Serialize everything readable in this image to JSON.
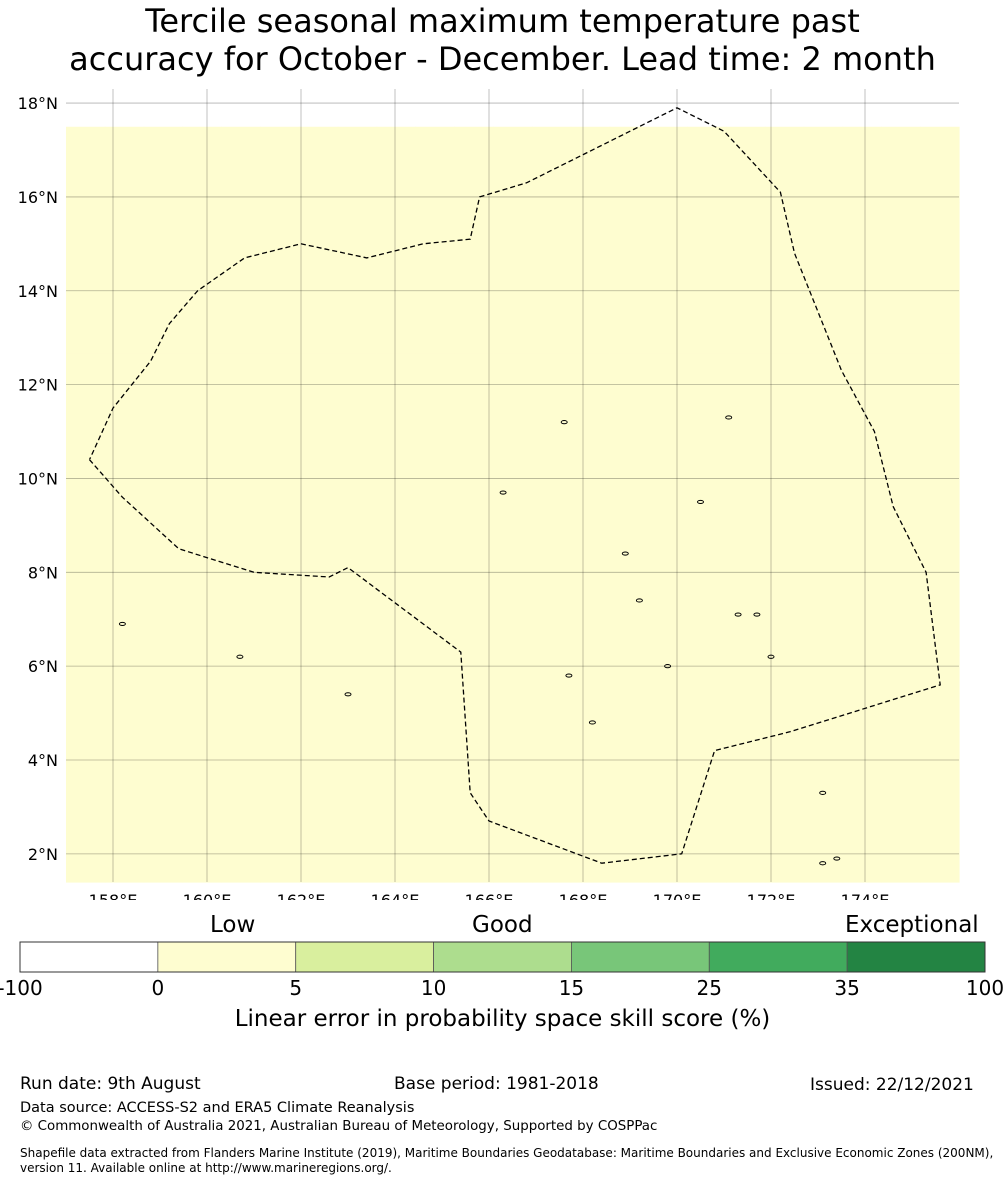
{
  "title": {
    "line1": "Tercile seasonal maximum temperature past",
    "line2": "accuracy for October - December. Lead time: 2 month"
  },
  "map": {
    "lon_range": [
      157,
      176
    ],
    "lat_range": [
      1.4,
      18.3
    ],
    "lon_ticks": [
      "158°E",
      "160°E",
      "162°E",
      "164°E",
      "166°E",
      "168°E",
      "170°E",
      "172°E",
      "174°E"
    ],
    "lat_ticks": [
      "18°N",
      "16°N",
      "14°N",
      "12°N",
      "10°N",
      "8°N",
      "6°N",
      "4°N",
      "2°N"
    ],
    "grid_resolution_deg": 0.833,
    "grid_note": "rows listed north to south, columns west to east; values are colorbar class indices 0-6",
    "skill_classes": [
      "00000000000000000000000",
      "11111111111111111111111",
      "11111111111111111111111",
      "11111111111111111111111",
      "11111111111111111111111",
      "11111111111111111111111",
      "11111111111111111111111",
      "11111111111111111111111",
      "11111111111111111111111",
      "11111111111111111111111",
      "11111111111111111111111",
      "11111111111111111111111",
      "11111111111111111111111",
      "11111111111111111111111",
      "11111111111111111111111",
      "11111111111111111111111",
      "11111111111111111111111",
      "11111111111111111111111",
      "11111111111111111111111",
      "11111111111111111111111",
      "11111111111111111111111"
    ],
    "eez_boundary": [
      [
        157.5,
        10.4
      ],
      [
        158.2,
        9.6
      ],
      [
        159.4,
        8.5
      ],
      [
        161.0,
        8.0
      ],
      [
        162.6,
        7.9
      ],
      [
        163.0,
        8.1
      ],
      [
        165.4,
        6.3
      ],
      [
        165.6,
        3.3
      ],
      [
        166.0,
        2.7
      ],
      [
        168.4,
        1.8
      ],
      [
        170.1,
        2.0
      ],
      [
        170.8,
        4.2
      ],
      [
        172.4,
        4.6
      ],
      [
        175.6,
        5.6
      ],
      [
        175.3,
        8.0
      ],
      [
        174.6,
        9.4
      ],
      [
        174.2,
        11.0
      ],
      [
        173.5,
        12.3
      ],
      [
        172.5,
        14.8
      ],
      [
        172.2,
        16.1
      ],
      [
        171.0,
        17.4
      ],
      [
        170.0,
        17.9
      ],
      [
        166.8,
        16.3
      ],
      [
        165.8,
        16.0
      ],
      [
        165.6,
        15.1
      ],
      [
        164.6,
        15.0
      ],
      [
        163.4,
        14.7
      ],
      [
        162.0,
        15.0
      ],
      [
        160.8,
        14.7
      ],
      [
        159.8,
        14.0
      ],
      [
        159.2,
        13.3
      ],
      [
        158.8,
        12.5
      ],
      [
        158.0,
        11.5
      ],
      [
        157.5,
        10.4
      ]
    ],
    "islands": [
      [
        158.2,
        6.9
      ],
      [
        160.7,
        6.2
      ],
      [
        163.0,
        5.4
      ],
      [
        166.3,
        9.7
      ],
      [
        167.6,
        11.2
      ],
      [
        168.9,
        8.4
      ],
      [
        169.2,
        7.4
      ],
      [
        170.5,
        9.5
      ],
      [
        171.3,
        7.1
      ],
      [
        171.7,
        7.1
      ],
      [
        172.0,
        6.2
      ],
      [
        173.1,
        3.3
      ],
      [
        173.1,
        1.8
      ],
      [
        173.4,
        1.9
      ],
      [
        171.1,
        11.3
      ],
      [
        168.2,
        4.8
      ],
      [
        167.7,
        5.8
      ],
      [
        169.8,
        6.0
      ]
    ]
  },
  "colorbar": {
    "category_words": [
      "Low",
      "Good",
      "Exceptional"
    ],
    "tick_labels": [
      "-100",
      "0",
      "5",
      "10",
      "15",
      "25",
      "35",
      "100"
    ],
    "colors": [
      "#ffffff",
      "#fefdd0",
      "#d9ef9e",
      "#addd8e",
      "#78c679",
      "#41ab5d",
      "#238443"
    ],
    "label": "Linear error in probability space skill score (%)"
  },
  "footer": {
    "run_date": "Run date: 9th August",
    "base_period": "Base period: 1981-2018",
    "issued": "Issued: 22/12/2021",
    "data_source": "Data source: ACCESS-S2 and ERA5 Climate Reanalysis",
    "copyright": "© Commonwealth of Australia 2021, Australian Bureau of Meteorology, Supported by COSPPac",
    "shapefile": "Shapefile data extracted from Flanders Marine Institute (2019), Maritime Boundaries Geodatabase: Maritime Boundaries and Exclusive Economic Zones (200NM), version 11. Available online at http://www.marineregions.org/."
  }
}
